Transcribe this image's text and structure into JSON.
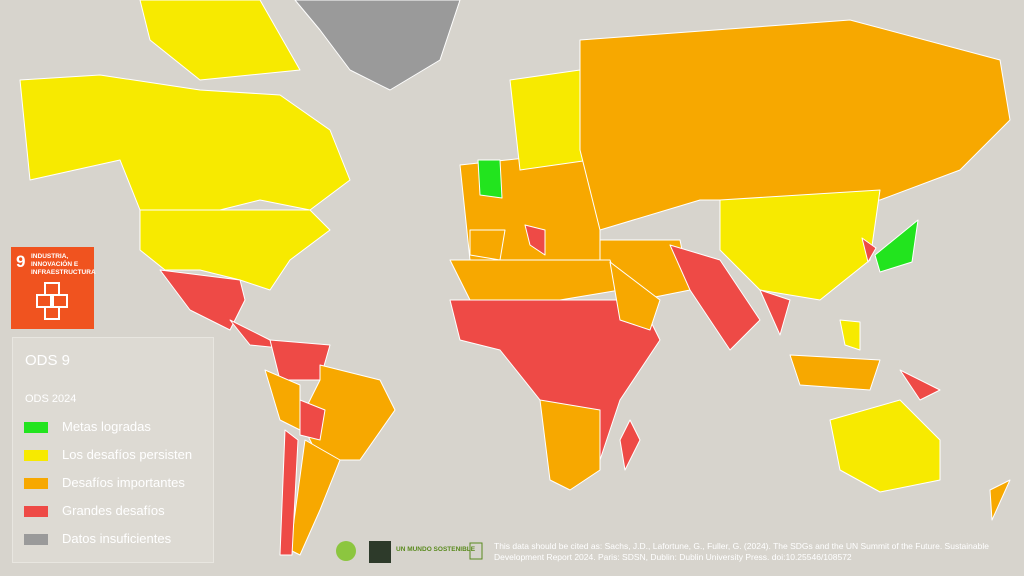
{
  "sdg_badge": {
    "number": "9",
    "label": "INDUSTRIA, INNOVACIÓN E INFRAESTRUCTURA",
    "color": "#f0531f"
  },
  "legend": {
    "title": "ODS 9",
    "subtitle": "ODS 2024",
    "items": [
      {
        "label": "Metas logradas",
        "color": "#22e41e"
      },
      {
        "label": "Los desafíos persisten",
        "color": "#f7ea00"
      },
      {
        "label": "Desafíos importantes",
        "color": "#f7a800"
      },
      {
        "label": "Grandes desafíos",
        "color": "#ee4a46"
      },
      {
        "label": "Datos insuficientes",
        "color": "#9a9a9a"
      }
    ]
  },
  "logos": {
    "brand": "UN MUNDO SOSTENIBLE"
  },
  "citation": "This data should be cited as:  Sachs, J.D., Lafortune, G., Fuller, G. (2024). The SDGs and the UN Summit of the Future. Sustainable Development Report 2024. Paris: SDSN, Dublin: Dublin University Press. doi:10.25546/108572"
}
